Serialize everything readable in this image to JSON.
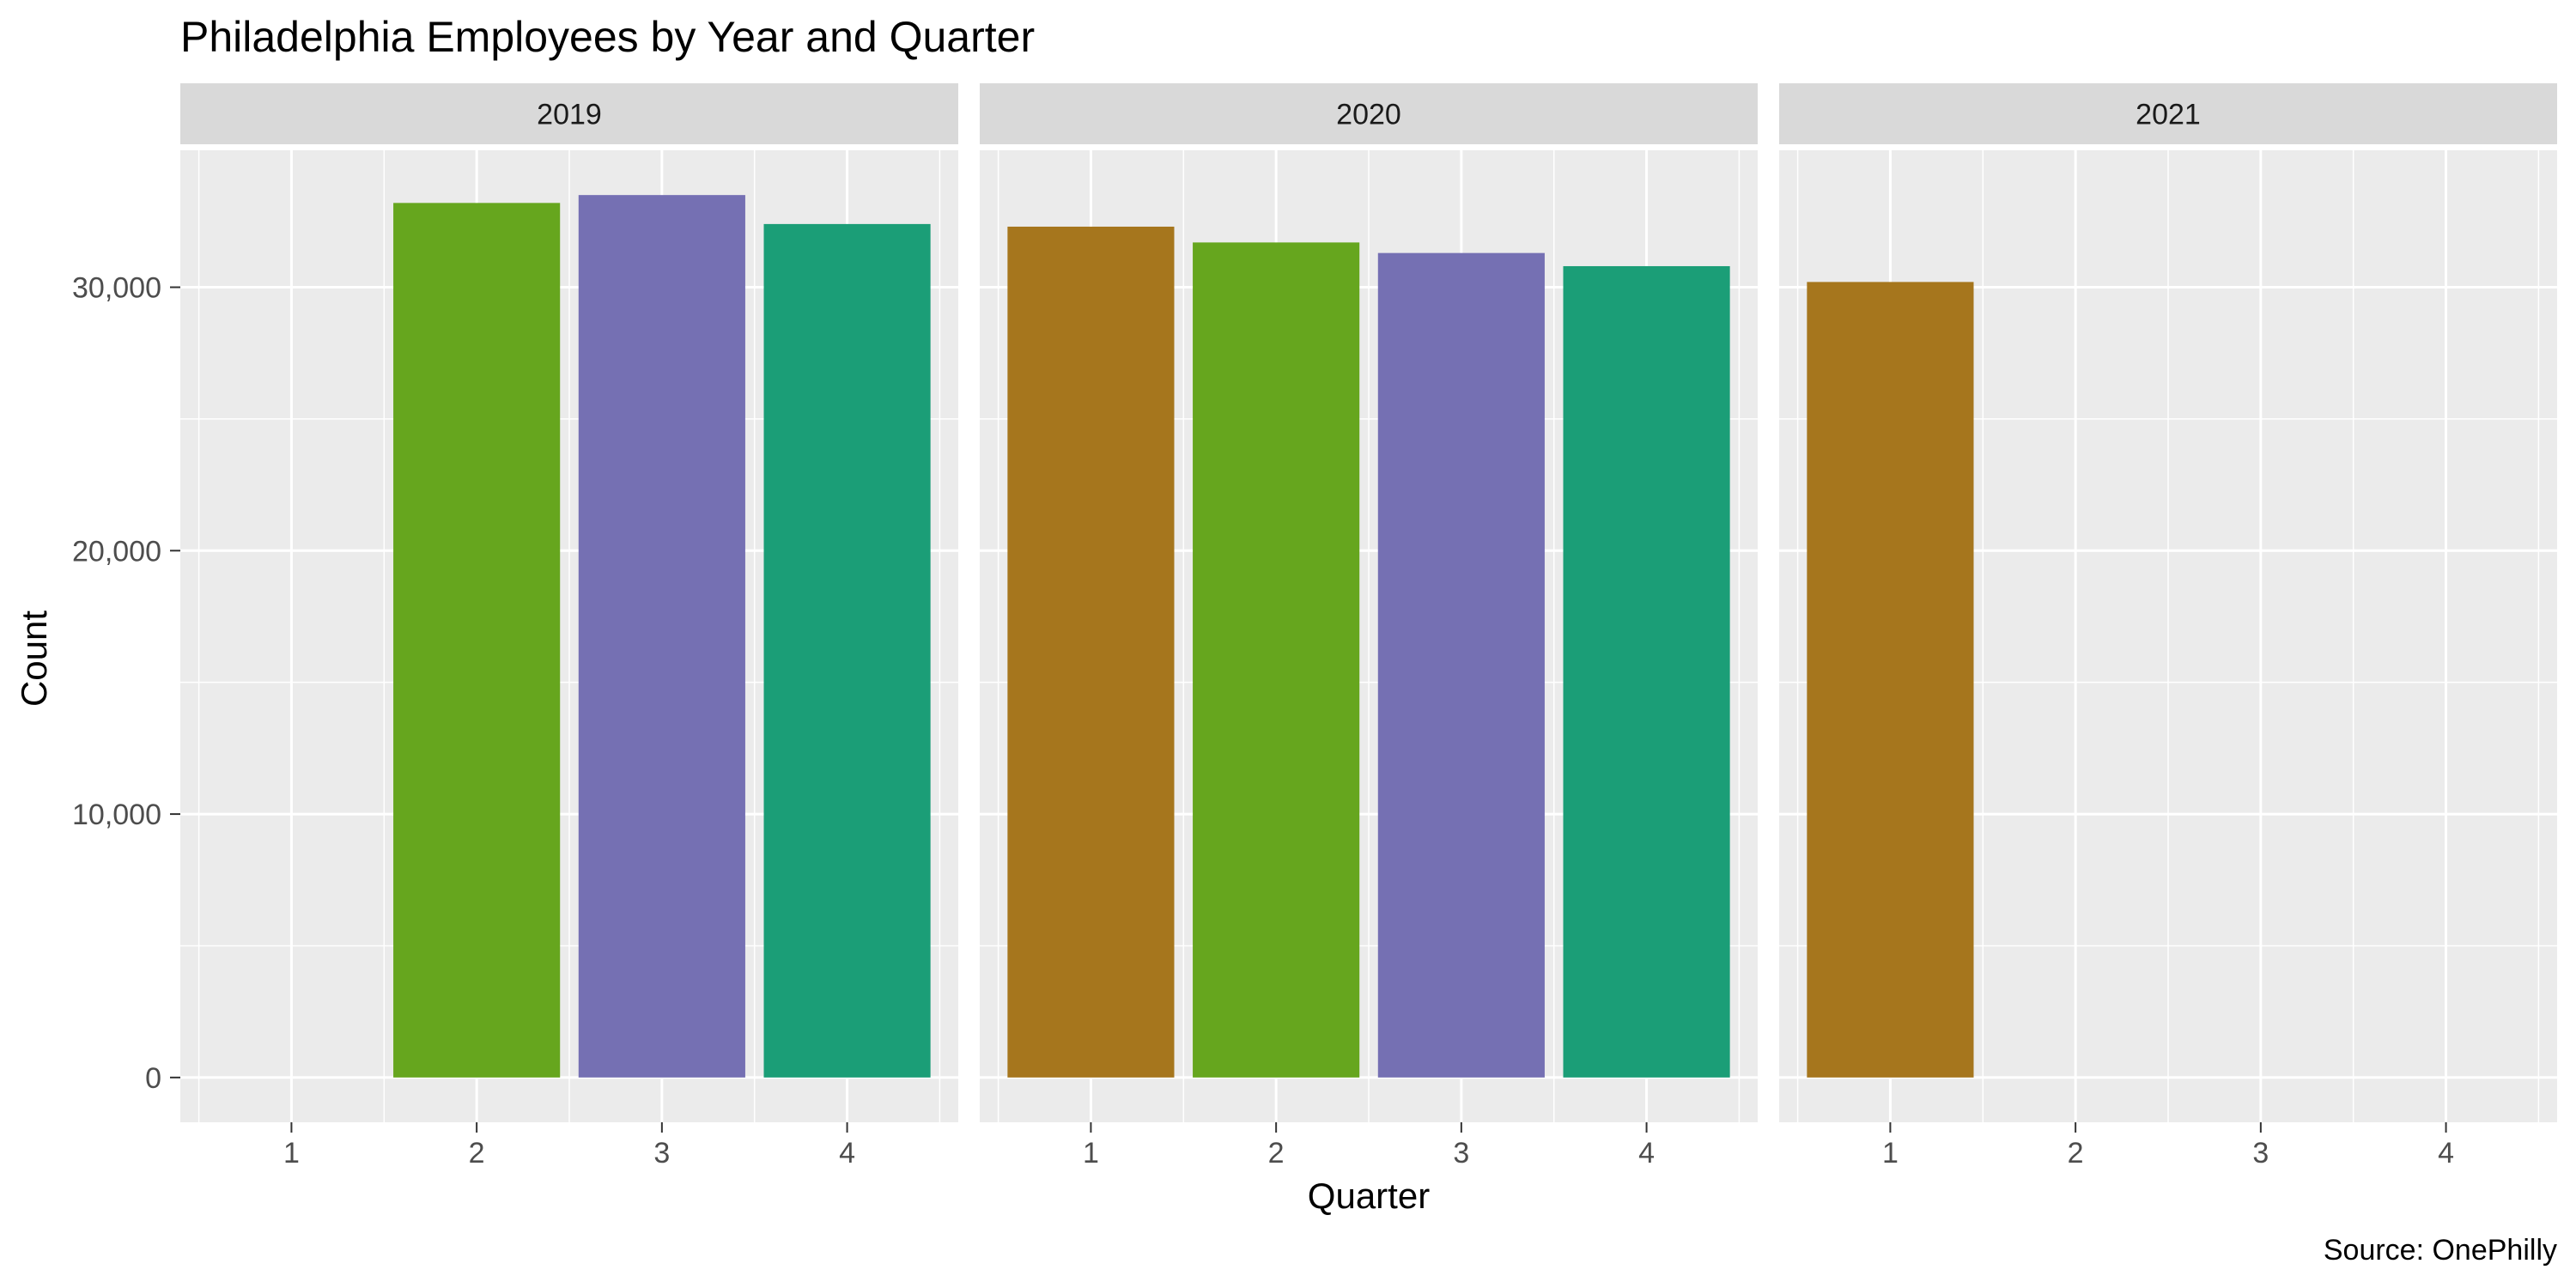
{
  "chart_data": {
    "type": "bar",
    "title": "Philadelphia Employees by Year and Quarter",
    "xlabel": "Quarter",
    "ylabel": "Count",
    "caption": "Source: OnePhilly",
    "ylim": [
      -1700,
      35200
    ],
    "y_ticks": [
      0,
      10000,
      20000,
      30000
    ],
    "y_tick_labels": [
      "0",
      "10,000",
      "20,000",
      "30,000"
    ],
    "categories": [
      "1",
      "2",
      "3",
      "4"
    ],
    "facets": [
      {
        "label": "2019",
        "values": [
          null,
          33200,
          33500,
          32400
        ]
      },
      {
        "label": "2020",
        "values": [
          32300,
          31700,
          31300,
          30800
        ]
      },
      {
        "label": "2021",
        "values": [
          30200,
          null,
          null,
          null
        ]
      }
    ],
    "quarter_colors": [
      "#a6761d",
      "#66a61e",
      "#7570b3",
      "#1b9e77"
    ],
    "panel_background": "#ebebeb",
    "strip_background": "#d9d9d9",
    "grid": true,
    "legend": "none"
  }
}
